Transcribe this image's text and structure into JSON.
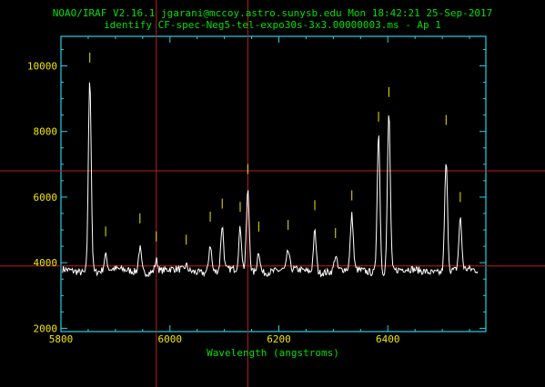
{
  "header": {
    "line1": "NOAO/IRAF V2.16.1 jgarani@mccoy.astro.sunysb.edu Mon 18:42:21 25-Sep-2017",
    "line2": "identify CF-spec-Neg5-tel-expo30s-3x3.00000003.ms - Ap 1"
  },
  "colors": {
    "background": "#000000",
    "frame": "#22d3e6",
    "spectrum": "#ffffff",
    "text": "#00e000",
    "tick_labels": "#f2e600",
    "line_marks": "#f2e600",
    "cursor": "#c01c1c"
  },
  "chart_data": {
    "type": "line",
    "title": "",
    "xlabel": "Wavelength (angstroms)",
    "ylabel": "",
    "xlim": [
      5800,
      6580
    ],
    "ylim": [
      1900,
      10900
    ],
    "x_ticks": [
      5800,
      6000,
      6200,
      6400
    ],
    "y_ticks": [
      2000,
      4000,
      6000,
      8000,
      10000
    ],
    "continuum": 3750,
    "peaks": [
      {
        "x": 5853,
        "y": 9700,
        "mark": 10100
      },
      {
        "x": 5882,
        "y": 4200,
        "mark": 4800
      },
      {
        "x": 5945,
        "y": 4500,
        "mark": 5200
      },
      {
        "x": 5975,
        "y": 4100,
        "mark": 4650
      },
      {
        "x": 6030,
        "y": 3900,
        "mark": 4550
      },
      {
        "x": 6074,
        "y": 4600,
        "mark": 5250
      },
      {
        "x": 6096,
        "y": 5100,
        "mark": 5650
      },
      {
        "x": 6129,
        "y": 5000,
        "mark": 5550
      },
      {
        "x": 6143,
        "y": 6200,
        "mark": 6700
      },
      {
        "x": 6163,
        "y": 4400,
        "mark": 4950
      },
      {
        "x": 6217,
        "y": 4300,
        "mark": 5000
      },
      {
        "x": 6266,
        "y": 5000,
        "mark": 5600
      },
      {
        "x": 6304,
        "y": 4200,
        "mark": 4750
      },
      {
        "x": 6334,
        "y": 5400,
        "mark": 5900
      },
      {
        "x": 6383,
        "y": 8000,
        "mark": 8300
      },
      {
        "x": 6402,
        "y": 8600,
        "mark": 9050
      },
      {
        "x": 6507,
        "y": 7100,
        "mark": 8200
      },
      {
        "x": 6533,
        "y": 5300,
        "mark": 5850
      }
    ],
    "cursor": {
      "x": [
        5975,
        6143
      ],
      "y": [
        6800,
        3900
      ]
    }
  }
}
